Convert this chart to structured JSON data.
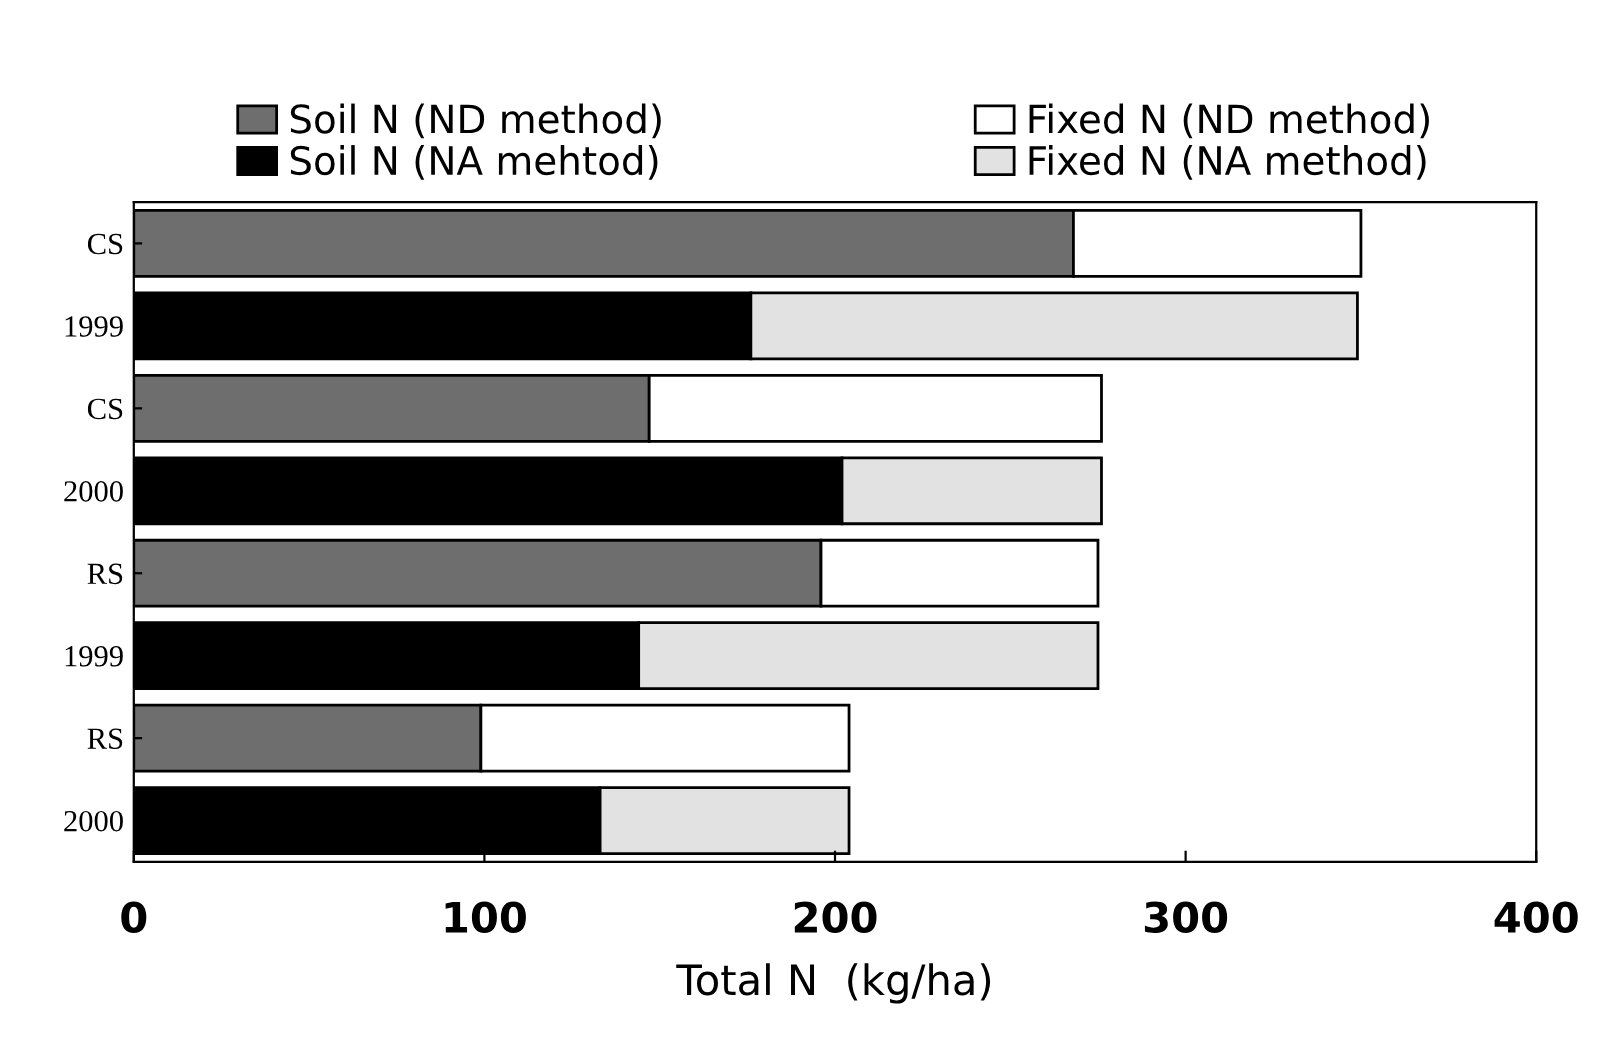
{
  "chart_data": {
    "type": "bar",
    "orientation": "horizontal",
    "stacked": true,
    "xlabel": "Total N  (kg/ha)",
    "categories": [
      "CS",
      "1999",
      "CS",
      "2000",
      "RS",
      "1999",
      "RS",
      "2000"
    ],
    "series": [
      {
        "name": "Soil N (ND method)",
        "color": "#6e6e6e",
        "values": [
          268,
          null,
          147,
          null,
          196,
          null,
          99,
          null
        ]
      },
      {
        "name": "Soil N (NA mehtod)",
        "color": "#000000",
        "values": [
          null,
          176,
          null,
          202,
          null,
          144,
          null,
          133
        ]
      },
      {
        "name": "Fixed N (ND method)",
        "color": "#ffffff",
        "values": [
          82,
          null,
          129,
          null,
          79,
          null,
          105,
          null
        ]
      },
      {
        "name": "Fixed N (NA method)",
        "color": "#e2e2e2",
        "values": [
          null,
          173,
          null,
          74,
          null,
          131,
          null,
          71
        ]
      }
    ],
    "xlim": [
      0,
      400
    ],
    "xticks": [
      0,
      100,
      200,
      300,
      400
    ],
    "grid": false,
    "legend": "top"
  }
}
